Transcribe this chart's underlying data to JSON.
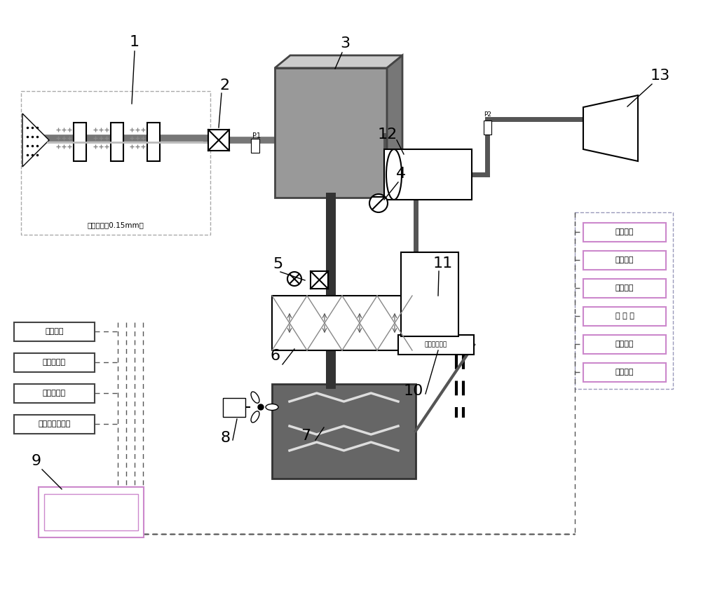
{
  "bg_color": "#ffffff",
  "line_color": "#000000",
  "gray_dark": "#555555",
  "gray_mid": "#888888",
  "gray_light": "#aaaaaa",
  "gray_box": "#666666",
  "green_line": "#006600",
  "purple_box": "#cc99cc",
  "pink_box": "#ffccff",
  "component_numbers": [
    "1",
    "2",
    "3",
    "4",
    "5",
    "6",
    "7",
    "8",
    "9",
    "10",
    "11",
    "12",
    "13"
  ],
  "left_labels": [
    "进风压差",
    "富氧真空度",
    "真空电磁阀",
    "真空泵排气温度"
  ],
  "right_labels": [
    "环境温度",
    "环境湿度",
    "海拔高度",
    "大 气 压",
    "氧气浓度",
    "臭氧浓度"
  ],
  "filter_label": "过滤系统（0.15mm）",
  "water_sep_label": "水、气分离器",
  "p1_label": "P1",
  "p2_label": "P2"
}
